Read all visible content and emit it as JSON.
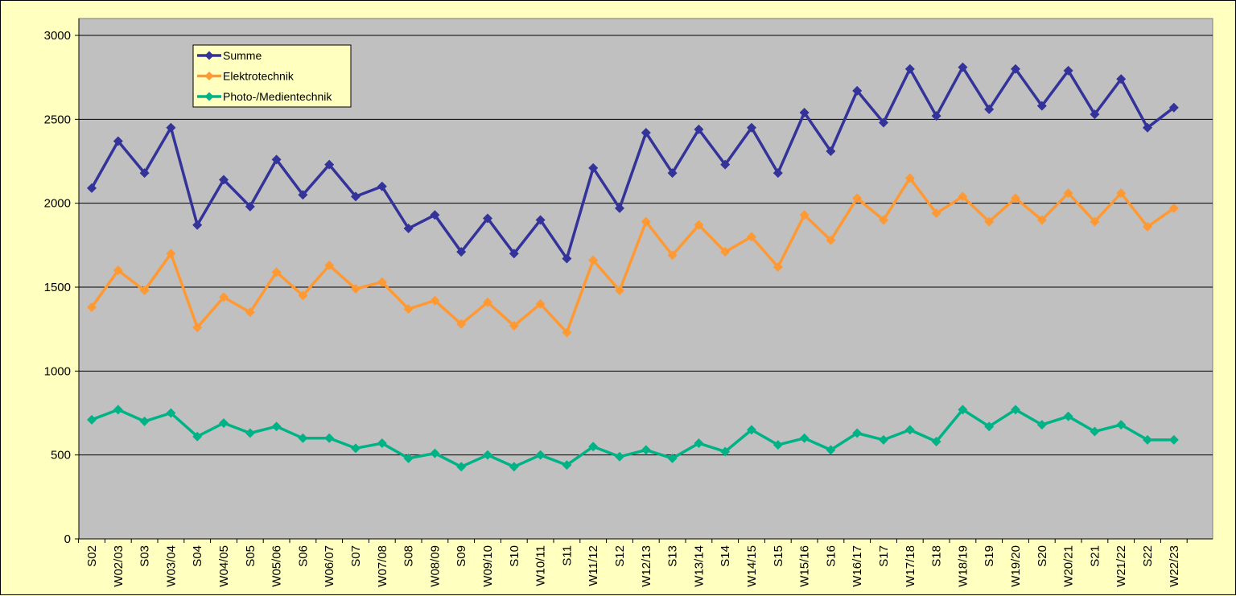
{
  "chart_data": {
    "type": "line",
    "title": "",
    "xlabel": "",
    "ylabel": "",
    "ylim": [
      0,
      3000
    ],
    "y_ticks": [
      0,
      500,
      1000,
      1500,
      2000,
      2500,
      3000
    ],
    "grid": true,
    "legend_position": "top-left",
    "colors": {
      "page_background": "#ffffc0",
      "plot_background": "#c0c0c0",
      "gridline": "#000000"
    },
    "categories": [
      "S02",
      "W02/03",
      "S03",
      "W03/04",
      "S04",
      "W04/05",
      "S05",
      "W05/06",
      "S06",
      "W06/07",
      "S07",
      "W07/08",
      "S08",
      "W08/09",
      "S09",
      "W09/10",
      "S10",
      "W10/11",
      "S11",
      "W11/12",
      "S12",
      "W12/13",
      "S13",
      "W13/14",
      "S14",
      "W14/15",
      "S15",
      "W15/16",
      "S16",
      "W16/17",
      "S17",
      "W17/18",
      "S18",
      "W18/19",
      "S19",
      "W19/20",
      "S20",
      "W20/21",
      "S21",
      "W21/22",
      "S22",
      "W22/23"
    ],
    "series": [
      {
        "name": "Summe",
        "color": "#333399",
        "values": [
          2090,
          2370,
          2180,
          2450,
          1870,
          2140,
          1980,
          2260,
          2050,
          2230,
          2040,
          2100,
          1850,
          1930,
          1710,
          1910,
          1700,
          1900,
          1670,
          2210,
          1970,
          2420,
          2180,
          2440,
          2230,
          2450,
          2180,
          2540,
          2310,
          2670,
          2480,
          2800,
          2520,
          2810,
          2560,
          2800,
          2580,
          2790,
          2530,
          2740,
          2450,
          2570
        ]
      },
      {
        "name": "Elektrotechnik",
        "color": "#ff9933",
        "values": [
          1380,
          1600,
          1480,
          1700,
          1260,
          1440,
          1350,
          1590,
          1450,
          1630,
          1490,
          1530,
          1370,
          1420,
          1280,
          1410,
          1270,
          1400,
          1230,
          1660,
          1480,
          1890,
          1690,
          1870,
          1710,
          1800,
          1620,
          1930,
          1780,
          2030,
          1900,
          2150,
          1940,
          2040,
          1890,
          2030,
          1900,
          2060,
          1890,
          2060,
          1860,
          1970
        ]
      },
      {
        "name": "Photo-/Medientechnik",
        "color": "#00b386",
        "values": [
          710,
          770,
          700,
          750,
          610,
          690,
          630,
          670,
          600,
          600,
          540,
          570,
          480,
          510,
          430,
          500,
          430,
          500,
          440,
          550,
          490,
          530,
          480,
          570,
          520,
          650,
          560,
          600,
          530,
          630,
          590,
          650,
          580,
          770,
          670,
          770,
          680,
          730,
          640,
          680,
          590,
          590
        ]
      }
    ]
  }
}
